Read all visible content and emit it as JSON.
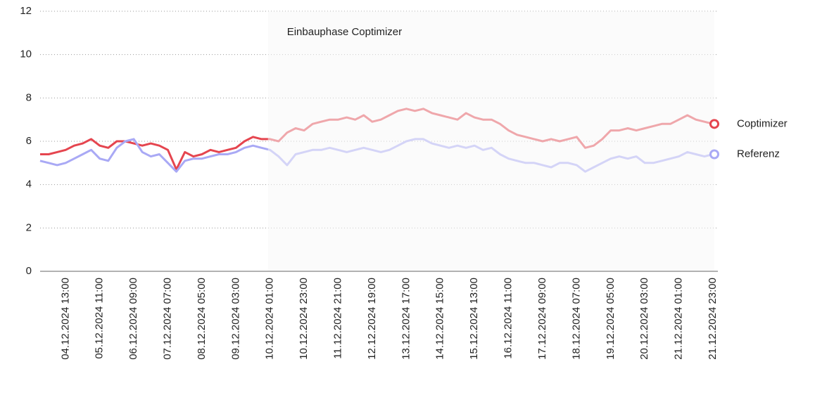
{
  "chart_data": {
    "type": "line",
    "annotation": {
      "label": "Einbauphase Coptimizer",
      "from": "10.12.2024 01:00",
      "to": "21.12.2024 23:00"
    },
    "categories": [
      null,
      null,
      null,
      "04.12.2024 13:00",
      null,
      null,
      null,
      "05.12.2024 11:00",
      null,
      null,
      null,
      "06.12.2024 09:00",
      null,
      null,
      null,
      "07.12.2024 07:00",
      null,
      null,
      null,
      "08.12.2024 05:00",
      null,
      null,
      null,
      "09.12.2024 03:00",
      null,
      null,
      null,
      "10.12.2024 01:00",
      null,
      null,
      null,
      "10.12.2024 23:00",
      null,
      null,
      null,
      "11.12.2024 21:00",
      null,
      null,
      null,
      "12.12.2024 19:00",
      null,
      null,
      null,
      "13.12.2024 17:00",
      null,
      null,
      null,
      "14.12.2024 15:00",
      null,
      null,
      null,
      "15.12.2024 13:00",
      null,
      null,
      null,
      "16.12.2024 11:00",
      null,
      null,
      null,
      "17.12.2024 09:00",
      null,
      null,
      null,
      "18.12.2024 07:00",
      null,
      null,
      null,
      "19.12.2024 05:00",
      null,
      null,
      null,
      "20.12.2024 03:00",
      null,
      null,
      null,
      "21.12.2024 01:00",
      null,
      null,
      null,
      "21.12.2024 23:00"
    ],
    "series": [
      {
        "name": "Coptimizer",
        "color": "#e5454f",
        "values": [
          5.4,
          5.4,
          5.5,
          5.6,
          5.8,
          5.9,
          6.1,
          5.8,
          5.7,
          6.0,
          6.0,
          5.9,
          5.8,
          5.9,
          5.8,
          5.6,
          4.7,
          5.5,
          5.3,
          5.4,
          5.6,
          5.5,
          5.6,
          5.7,
          6.0,
          6.2,
          6.1,
          6.1,
          6.0,
          6.4,
          6.6,
          6.5,
          6.8,
          6.9,
          7.0,
          7.0,
          7.1,
          7.0,
          7.2,
          6.9,
          7.0,
          7.2,
          7.4,
          7.5,
          7.4,
          7.5,
          7.3,
          7.2,
          7.1,
          7.0,
          7.3,
          7.1,
          7.0,
          7.0,
          6.8,
          6.5,
          6.3,
          6.2,
          6.1,
          6.0,
          6.1,
          6.0,
          6.1,
          6.2,
          5.7,
          5.8,
          6.1,
          6.5,
          6.5,
          6.6,
          6.5,
          6.6,
          6.7,
          6.8,
          6.8,
          7.0,
          7.2,
          7.0,
          6.9,
          6.8
        ]
      },
      {
        "name": "Referenz",
        "color": "#a9a9f5",
        "values": [
          5.1,
          5.0,
          4.9,
          5.0,
          5.2,
          5.4,
          5.6,
          5.2,
          5.1,
          5.7,
          6.0,
          6.1,
          5.5,
          5.3,
          5.4,
          5.0,
          4.6,
          5.1,
          5.2,
          5.2,
          5.3,
          5.4,
          5.4,
          5.5,
          5.7,
          5.8,
          5.7,
          5.6,
          5.3,
          4.9,
          5.4,
          5.5,
          5.6,
          5.6,
          5.7,
          5.6,
          5.5,
          5.6,
          5.7,
          5.6,
          5.5,
          5.6,
          5.8,
          6.0,
          6.1,
          6.1,
          5.9,
          5.8,
          5.7,
          5.8,
          5.7,
          5.8,
          5.6,
          5.7,
          5.4,
          5.2,
          5.1,
          5.0,
          5.0,
          4.9,
          4.8,
          5.0,
          5.0,
          4.9,
          4.6,
          4.8,
          5.0,
          5.2,
          5.3,
          5.2,
          5.3,
          5.0,
          5.0,
          5.1,
          5.2,
          5.3,
          5.5,
          5.4,
          5.3,
          5.4
        ]
      }
    ],
    "ylim": [
      0,
      12
    ],
    "yticks": [
      0,
      2,
      4,
      6,
      8,
      10,
      12
    ],
    "grid": true
  }
}
